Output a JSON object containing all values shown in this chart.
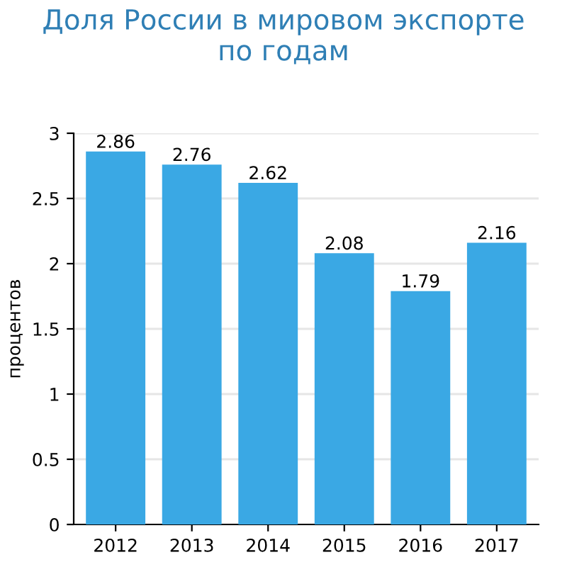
{
  "chart_data": {
    "type": "bar",
    "title": "Доля России в мировом экспорте\nпо годам",
    "ylabel": "процентов",
    "categories": [
      "2012",
      "2013",
      "2014",
      "2015",
      "2016",
      "2017"
    ],
    "values": [
      2.86,
      2.76,
      2.62,
      2.08,
      1.79,
      2.16
    ],
    "color": "#3aa8e4",
    "ylim": [
      0,
      3
    ],
    "yticks": [
      0,
      0.5,
      1,
      1.5,
      2,
      2.5,
      3
    ],
    "grid": "y",
    "data_labels": true
  }
}
